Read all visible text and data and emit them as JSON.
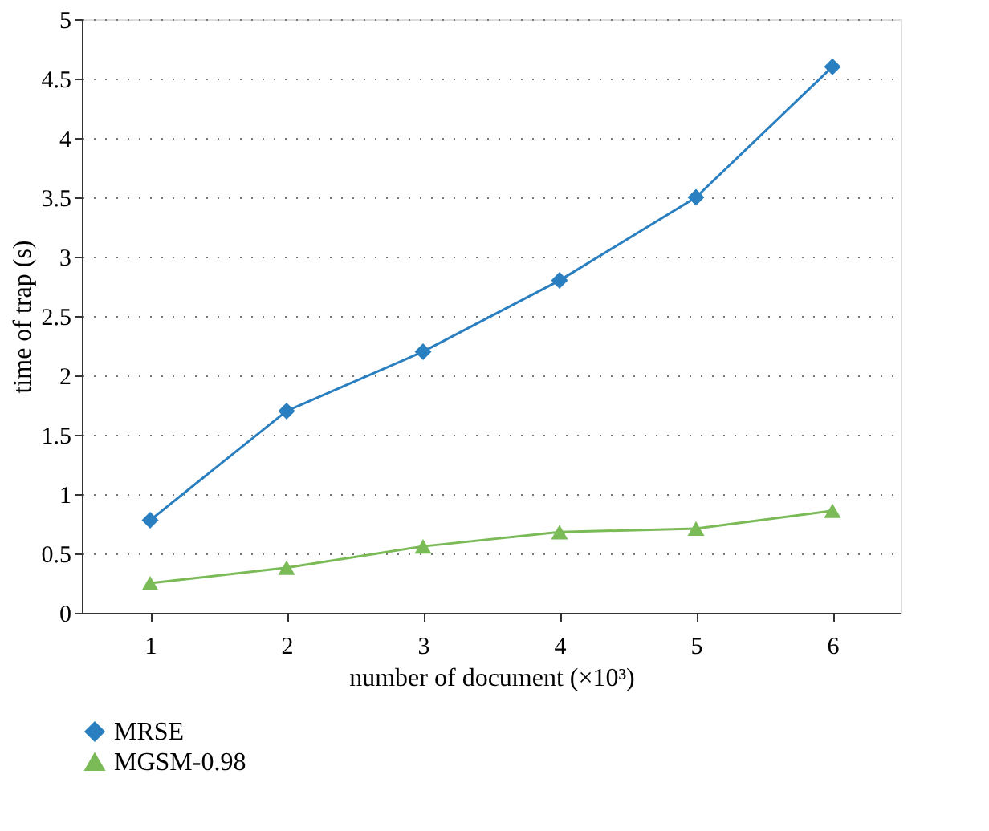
{
  "chart_data": {
    "type": "line",
    "xlabel": "number of document (×10³)",
    "ylabel": "time of trap (s)",
    "categories": [
      "1",
      "2",
      "3",
      "4",
      "5",
      "6"
    ],
    "series": [
      {
        "name": "MRSE",
        "color": "#2a7fc0",
        "marker": "diamond",
        "values": [
          0.78,
          1.7,
          2.2,
          2.8,
          3.5,
          4.6
        ]
      },
      {
        "name": "MGSM-0.98",
        "color": "#7aba57",
        "marker": "triangle",
        "values": [
          0.25,
          0.38,
          0.56,
          0.68,
          0.71,
          0.86
        ]
      }
    ],
    "ylim": [
      0,
      5
    ],
    "yticks": [
      0,
      0.5,
      1,
      1.5,
      2,
      2.5,
      3,
      3.5,
      4,
      4.5,
      5
    ],
    "grid": "y",
    "legend": "bottom",
    "line_style": "solid"
  }
}
